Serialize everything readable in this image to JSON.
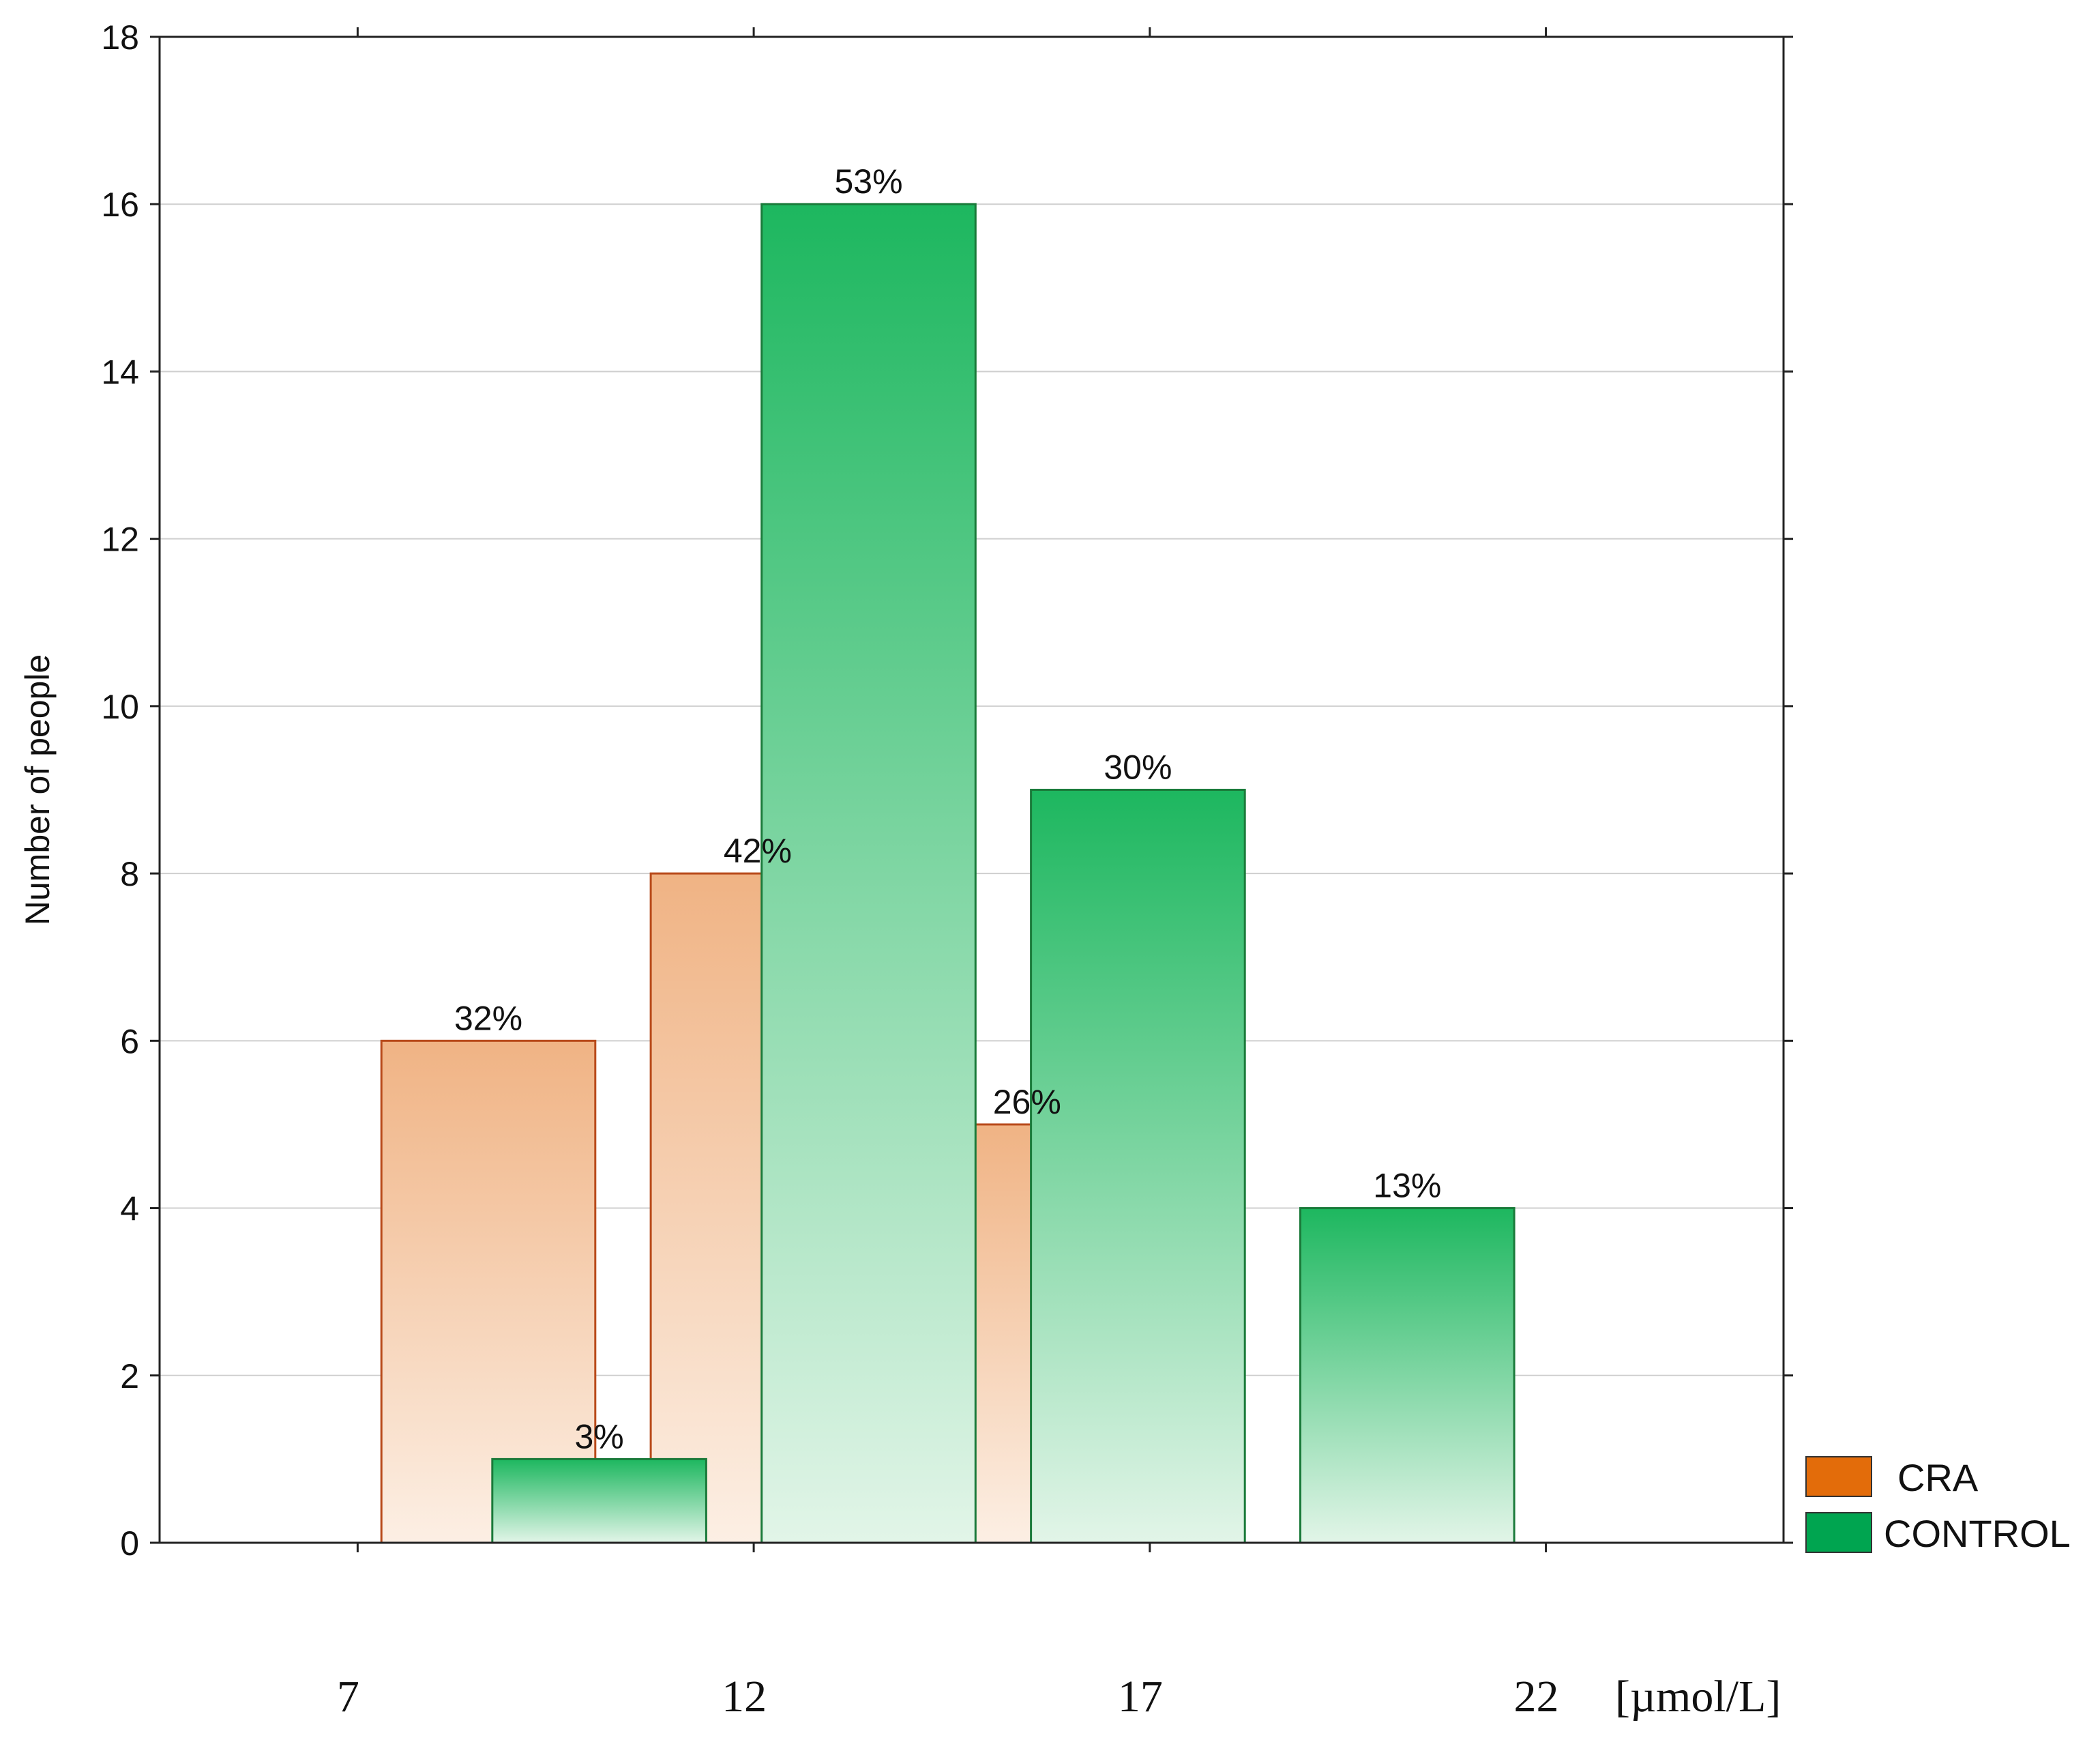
{
  "chart_data": {
    "type": "bar",
    "title": "",
    "ylabel": "Number of people",
    "xlabel": "",
    "x_unit": "[µmol/L]",
    "ylim": [
      0,
      18
    ],
    "yticks": [
      0,
      2,
      4,
      6,
      8,
      10,
      12,
      14,
      16,
      18
    ],
    "xlim": [
      4.5,
      25
    ],
    "xticks": [
      7,
      12,
      17,
      22
    ],
    "grid": true,
    "legend_position": "right",
    "bin_width": 2.7,
    "series": [
      {
        "name": "CRA",
        "color": "#e36c0a",
        "bars": [
          {
            "x_start": 7.3,
            "value": 6,
            "label": "32%"
          },
          {
            "x_start": 10.7,
            "value": 8,
            "label": "42%"
          },
          {
            "x_start": 14.1,
            "value": 5,
            "label": "26%"
          }
        ]
      },
      {
        "name": "CONTROL",
        "color": "#00a550",
        "bars": [
          {
            "x_start": 8.7,
            "value": 1,
            "label": "3%"
          },
          {
            "x_start": 12.1,
            "value": 16,
            "label": "53%"
          },
          {
            "x_start": 15.5,
            "value": 9,
            "label": "30%"
          },
          {
            "x_start": 18.9,
            "value": 4,
            "label": "13%"
          }
        ]
      }
    ]
  }
}
